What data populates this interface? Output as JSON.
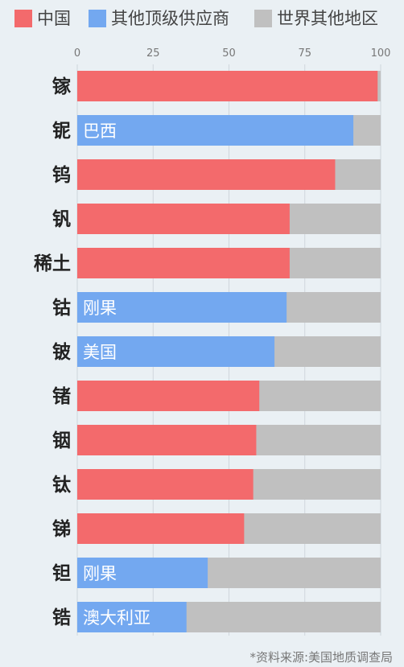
{
  "legend": [
    {
      "label": "中国",
      "color": "#f36a6c"
    },
    {
      "label": "其他顶级供应商",
      "color": "#73a8f0"
    },
    {
      "label": "世界其他地区",
      "color": "#c0c0c0"
    }
  ],
  "chart_data": {
    "type": "bar",
    "orientation": "horizontal",
    "stacked": true,
    "xlim": [
      0,
      100
    ],
    "xticks": [
      0,
      25,
      50,
      75,
      100
    ],
    "categories": [
      "镓",
      "铌",
      "钨",
      "钒",
      "稀土",
      "钴",
      "铍",
      "锗",
      "铟",
      "钛",
      "锑",
      "钽",
      "锆"
    ],
    "top_supplier": [
      {
        "group": "中国",
        "label": "",
        "value": 99
      },
      {
        "group": "其他顶级供应商",
        "label": "巴西",
        "value": 91
      },
      {
        "group": "中国",
        "label": "",
        "value": 85
      },
      {
        "group": "中国",
        "label": "",
        "value": 70
      },
      {
        "group": "中国",
        "label": "",
        "value": 70
      },
      {
        "group": "其他顶级供应商",
        "label": "刚果",
        "value": 69
      },
      {
        "group": "其他顶级供应商",
        "label": "美国",
        "value": 65
      },
      {
        "group": "中国",
        "label": "",
        "value": 60
      },
      {
        "group": "中国",
        "label": "",
        "value": 59
      },
      {
        "group": "中国",
        "label": "",
        "value": 58
      },
      {
        "group": "中国",
        "label": "",
        "value": 55
      },
      {
        "group": "其他顶级供应商",
        "label": "刚果",
        "value": 43
      },
      {
        "group": "其他顶级供应商",
        "label": "澳大利亚",
        "value": 36
      }
    ],
    "rest_of_world_color": "#c0c0c0",
    "grid": true,
    "legend_position": "top"
  },
  "footer": {
    "source": "*资料来源:美国地质调查局"
  }
}
